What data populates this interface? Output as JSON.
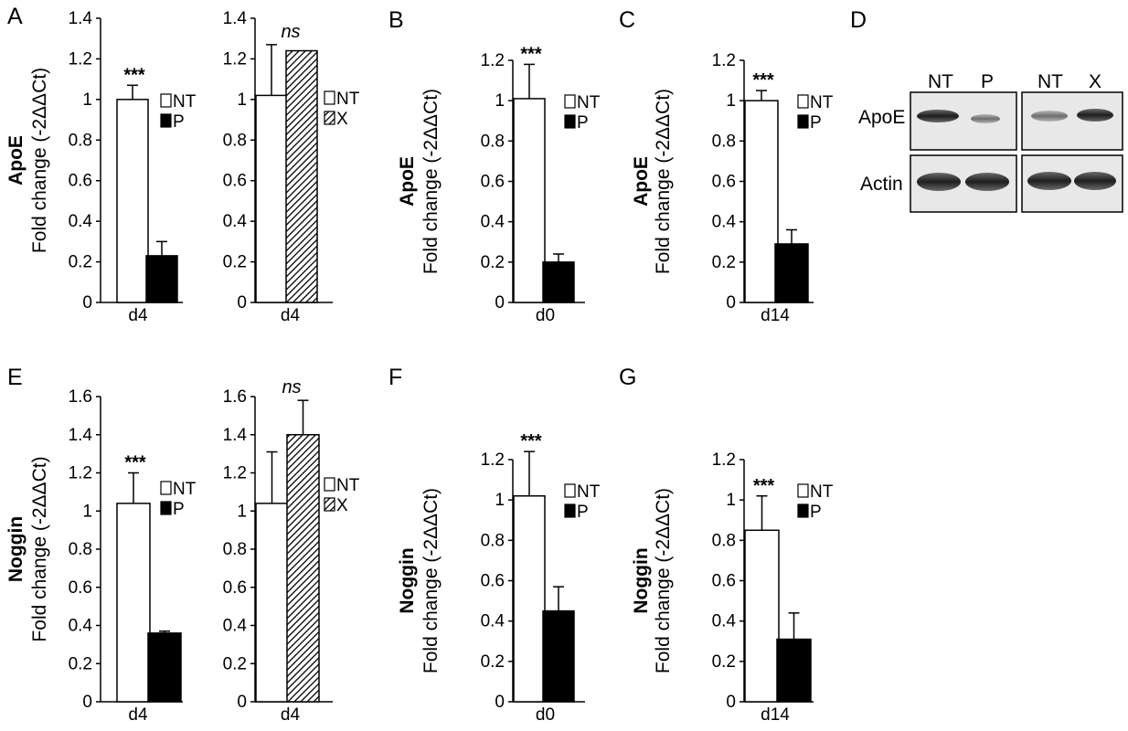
{
  "panel_labels": [
    "A",
    "B",
    "C",
    "D",
    "E",
    "F",
    "G"
  ],
  "y_axis_label": "Fold change (-2ΔΔCt)",
  "western_blot": {
    "panel": "D",
    "lanes": [
      "NT",
      "P",
      "NT",
      "X"
    ],
    "rows": [
      "ApoE",
      "Actin"
    ]
  },
  "colors": {
    "NT": "#ffffff",
    "P": "#000000",
    "X": "hatched"
  },
  "chart_data": [
    {
      "panel": "A",
      "type": "bar",
      "gene": "ApoE",
      "category": "d4",
      "ylim": [
        0,
        1.4
      ],
      "yticks": [
        "0",
        "0.2",
        "0.4",
        "0.6",
        "0.8",
        "1",
        "1.2",
        "1.4"
      ],
      "series": [
        {
          "name": "NT",
          "value": 1.0,
          "error": 0.07
        },
        {
          "name": "P",
          "value": 0.23,
          "error": 0.07
        }
      ],
      "significance": "***"
    },
    {
      "panel": "A",
      "type": "bar",
      "gene": "",
      "category": "d4",
      "ylim": [
        0,
        1.4
      ],
      "yticks": [
        "0",
        "0.2",
        "0.4",
        "0.6",
        "0.8",
        "1",
        "1.2",
        "1.4"
      ],
      "series": [
        {
          "name": "NT",
          "value": 1.02,
          "error": 0.25
        },
        {
          "name": "X",
          "value": 1.24,
          "error": 0
        }
      ],
      "significance": "ns"
    },
    {
      "panel": "B",
      "type": "bar",
      "gene": "ApoE",
      "category": "d0",
      "ylim": [
        0,
        1.2
      ],
      "yticks": [
        "0",
        "0.2",
        "0.4",
        "0.6",
        "0.8",
        "1",
        "1.2"
      ],
      "series": [
        {
          "name": "NT",
          "value": 1.01,
          "error": 0.17
        },
        {
          "name": "P",
          "value": 0.2,
          "error": 0.04
        }
      ],
      "significance": "***"
    },
    {
      "panel": "C",
      "type": "bar",
      "gene": "ApoE",
      "category": "d14",
      "ylim": [
        0,
        1.2
      ],
      "yticks": [
        "0",
        "0.2",
        "0.4",
        "0.6",
        "0.8",
        "1",
        "1.2"
      ],
      "series": [
        {
          "name": "NT",
          "value": 1.0,
          "error": 0.05
        },
        {
          "name": "P",
          "value": 0.29,
          "error": 0.07
        }
      ],
      "significance": "***"
    },
    {
      "panel": "E",
      "type": "bar",
      "gene": "Noggin",
      "category": "d4",
      "ylim": [
        0,
        1.6
      ],
      "yticks": [
        "0",
        "0.2",
        "0.4",
        "0.6",
        "0.8",
        "1",
        "1.2",
        "1.4",
        "1.6"
      ],
      "series": [
        {
          "name": "NT",
          "value": 1.04,
          "error": 0.16
        },
        {
          "name": "P",
          "value": 0.36,
          "error": 0.01
        }
      ],
      "significance": "***"
    },
    {
      "panel": "E",
      "type": "bar",
      "gene": "",
      "category": "d4",
      "ylim": [
        0,
        1.6
      ],
      "yticks": [
        "0",
        "0.2",
        "0.4",
        "0.6",
        "0.8",
        "1",
        "1.2",
        "1.4",
        "1.6"
      ],
      "series": [
        {
          "name": "NT",
          "value": 1.04,
          "error": 0.27
        },
        {
          "name": "X",
          "value": 1.4,
          "error": 0.18
        }
      ],
      "significance": "ns"
    },
    {
      "panel": "F",
      "type": "bar",
      "gene": "Noggin",
      "category": "d0",
      "ylim": [
        0,
        1.2
      ],
      "yticks": [
        "0",
        "0.2",
        "0.4",
        "0.6",
        "0.8",
        "1",
        "1.2"
      ],
      "series": [
        {
          "name": "NT",
          "value": 1.02,
          "error": 0.22
        },
        {
          "name": "P",
          "value": 0.45,
          "error": 0.12
        }
      ],
      "significance": "***"
    },
    {
      "panel": "G",
      "type": "bar",
      "gene": "Noggin",
      "category": "d14",
      "ylim": [
        0,
        1.2
      ],
      "yticks": [
        "0",
        "0.2",
        "0.4",
        "0.6",
        "0.8",
        "1",
        "1.2"
      ],
      "series": [
        {
          "name": "NT",
          "value": 0.85,
          "error": 0.17
        },
        {
          "name": "P",
          "value": 0.31,
          "error": 0.13
        }
      ],
      "significance": "***"
    }
  ]
}
